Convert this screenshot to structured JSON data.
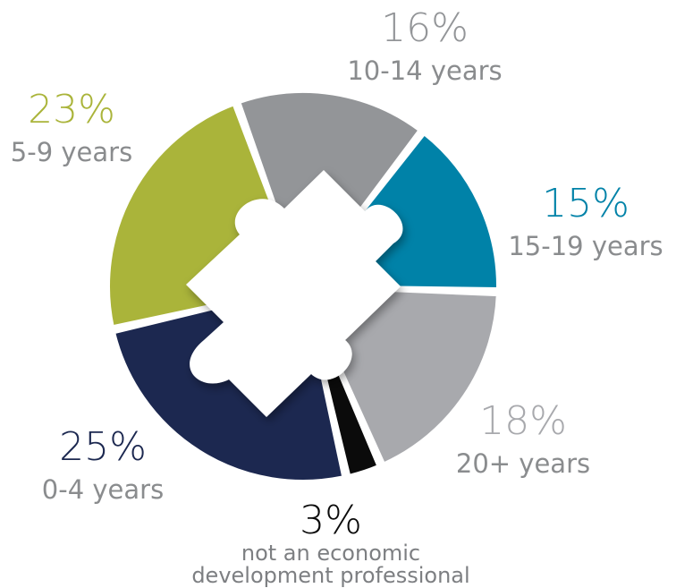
{
  "chart_data": {
    "type": "pie",
    "slices": [
      {
        "label": "10-14 years",
        "pct_label": "16%",
        "value": 16,
        "color": "#939598"
      },
      {
        "label": "15-19 years",
        "pct_label": "15%",
        "value": 15,
        "color": "#0082a8"
      },
      {
        "label": "20+ years",
        "pct_label": "18%",
        "value": 18,
        "color": "#a8a9ad"
      },
      {
        "label": "not an economic development professional",
        "pct_label": "3%",
        "value": 3,
        "color": "#0b0b0b"
      },
      {
        "label": "0-4 years",
        "pct_label": "25%",
        "value": 25,
        "color": "#1c2850"
      },
      {
        "label": "5-9 years",
        "pct_label": "23%",
        "value": 23,
        "color": "#aab43a"
      }
    ]
  },
  "labels": {
    "s0": {
      "pct": "16%",
      "cat": "10-14 years",
      "pct_color": "#939598"
    },
    "s1": {
      "pct": "15%",
      "cat": "15-19 years",
      "pct_color": "#0082a8"
    },
    "s2": {
      "pct": "18%",
      "cat": "20+ years",
      "pct_color": "#a8a9ad"
    },
    "s3": {
      "pct": "3%",
      "cat_line1": "not an economic",
      "cat_line2": "development professional",
      "pct_color": "#0b0b0b"
    },
    "s4": {
      "pct": "25%",
      "cat": "0-4 years",
      "pct_color": "#1c2850"
    },
    "s5": {
      "pct": "23%",
      "cat": "5-9 years",
      "pct_color": "#aab43a"
    }
  }
}
